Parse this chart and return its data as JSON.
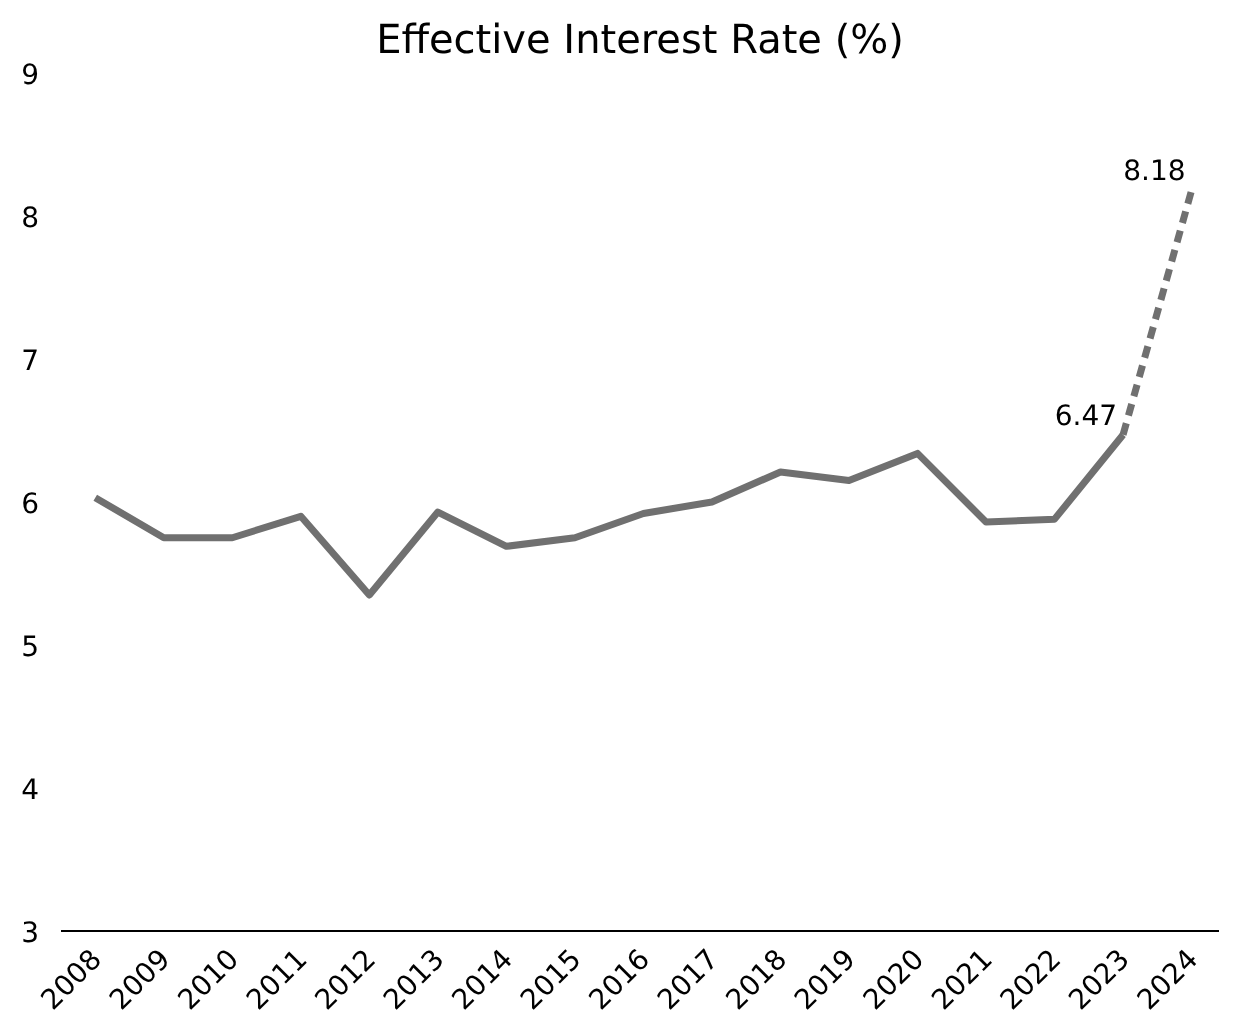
{
  "chart_data": {
    "type": "line",
    "title": "Effective Interest Rate (%)",
    "categories": [
      "2008",
      "2009",
      "2010",
      "2011",
      "2012",
      "2013",
      "2014",
      "2015",
      "2016",
      "2017",
      "2018",
      "2019",
      "2020",
      "2021",
      "2022",
      "2023",
      "2024"
    ],
    "series": [
      {
        "color": "#707070",
        "line_style": "solid",
        "values": [
          6.03,
          5.75,
          5.75,
          5.9,
          5.35,
          5.93,
          5.69,
          5.75,
          5.92,
          6.0,
          6.21,
          6.15,
          6.34,
          5.86,
          5.88,
          6.47,
          null
        ]
      },
      {
        "color": "#707070",
        "line_style": "dashed",
        "values": [
          null,
          null,
          null,
          null,
          null,
          null,
          null,
          null,
          null,
          null,
          null,
          null,
          null,
          null,
          null,
          6.47,
          8.18
        ],
        "value_labels": [
          null,
          null,
          null,
          null,
          null,
          null,
          null,
          null,
          null,
          null,
          null,
          null,
          null,
          null,
          null,
          "6.47",
          "8.18"
        ]
      }
    ],
    "ylim": [
      3,
      9
    ],
    "yticks": [
      3,
      4,
      5,
      6,
      7,
      8,
      9
    ],
    "grid": false,
    "marker": "none"
  }
}
